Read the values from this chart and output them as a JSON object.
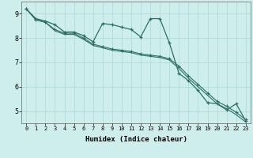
{
  "xlabel": "Humidex (Indice chaleur)",
  "background_color": "#ceeeed",
  "grid_color": "#aed8d5",
  "line_color": "#2d6e65",
  "x_ticks": [
    0,
    1,
    2,
    3,
    4,
    5,
    6,
    7,
    8,
    9,
    10,
    11,
    12,
    13,
    14,
    15,
    16,
    17,
    18,
    19,
    20,
    21,
    22,
    23
  ],
  "y_ticks": [
    5,
    6,
    7,
    8,
    9
  ],
  "ylim": [
    4.5,
    9.5
  ],
  "xlim": [
    -0.5,
    23.5
  ],
  "line1_x": [
    0,
    1,
    2,
    3,
    4,
    5,
    6,
    7,
    8,
    9,
    10,
    11,
    12,
    13,
    14,
    15,
    16,
    17,
    18,
    19,
    20,
    21,
    22,
    23
  ],
  "line1_y": [
    9.2,
    8.8,
    8.7,
    8.55,
    8.25,
    8.25,
    8.1,
    7.85,
    8.6,
    8.55,
    8.45,
    8.35,
    8.05,
    8.8,
    8.8,
    7.8,
    6.55,
    6.25,
    5.85,
    5.35,
    5.3,
    5.05,
    5.3,
    4.6
  ],
  "line2_x": [
    0,
    1,
    2,
    3,
    4,
    5,
    6,
    7,
    8,
    9,
    10,
    11,
    12,
    13,
    14,
    15,
    16,
    17,
    18,
    19,
    20,
    21,
    22,
    23
  ],
  "line2_y": [
    9.2,
    8.75,
    8.65,
    8.35,
    8.2,
    8.2,
    8.0,
    7.75,
    7.65,
    7.55,
    7.5,
    7.45,
    7.35,
    7.3,
    7.25,
    7.15,
    6.85,
    6.45,
    6.1,
    5.75,
    5.4,
    5.2,
    4.95,
    4.65
  ],
  "line3_x": [
    0,
    1,
    2,
    3,
    4,
    5,
    6,
    7,
    8,
    9,
    10,
    11,
    12,
    13,
    14,
    15,
    16,
    17,
    18,
    19,
    20,
    21,
    22,
    23
  ],
  "line3_y": [
    9.2,
    8.75,
    8.65,
    8.3,
    8.15,
    8.15,
    7.95,
    7.7,
    7.6,
    7.5,
    7.45,
    7.4,
    7.3,
    7.25,
    7.2,
    7.1,
    6.75,
    6.35,
    6.0,
    5.65,
    5.3,
    5.1,
    4.85,
    4.55
  ]
}
